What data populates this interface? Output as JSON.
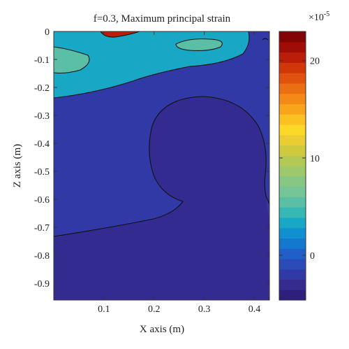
{
  "chart_data": {
    "type": "contour",
    "title": "f=0.3, Maximum principal strain",
    "xlabel": "X axis (m)",
    "ylabel": "Z axis (m)",
    "xlim": [
      0,
      0.43
    ],
    "ylim": [
      -0.96,
      0
    ],
    "x_ticks": [
      {
        "value": 0.1,
        "label": "0.1"
      },
      {
        "value": 0.2,
        "label": "0.2"
      },
      {
        "value": 0.3,
        "label": "0.3"
      },
      {
        "value": 0.4,
        "label": "0.4"
      }
    ],
    "y_ticks": [
      {
        "value": 0,
        "label": "0"
      },
      {
        "value": -0.1,
        "label": "-0.1"
      },
      {
        "value": -0.2,
        "label": "-0.2"
      },
      {
        "value": -0.3,
        "label": "-0.3"
      },
      {
        "value": -0.4,
        "label": "-0.4"
      },
      {
        "value": -0.5,
        "label": "-0.5"
      },
      {
        "value": -0.6,
        "label": "-0.6"
      },
      {
        "value": -0.7,
        "label": "-0.7"
      },
      {
        "value": -0.8,
        "label": "-0.8"
      },
      {
        "value": -0.9,
        "label": "-0.9"
      }
    ],
    "colorbar": {
      "exponent_label": "×10",
      "exponent_power": "-5",
      "range": [
        -4.6,
        23
      ],
      "ticks": [
        {
          "value": 0,
          "label": "0"
        },
        {
          "value": 10,
          "label": "10"
        },
        {
          "value": 20,
          "label": "20"
        }
      ],
      "colors": [
        "#2e1f7c",
        "#342b91",
        "#3039a6",
        "#2a4bb8",
        "#1f5fc7",
        "#1478cf",
        "#1090d0",
        "#18a8c6",
        "#37b8b4",
        "#5bbfa6",
        "#74c597",
        "#86c883",
        "#9dc96b",
        "#b4c955",
        "#cfc93e",
        "#eacd33",
        "#fcd828",
        "#fbc021",
        "#f9a51b",
        "#f48a16",
        "#ec6e12",
        "#e1520e",
        "#d1370b",
        "#bb1e08",
        "#a00c06",
        "#830404"
      ]
    },
    "regions": [
      {
        "name": "background-band",
        "value": -3.5
      },
      {
        "name": "lower-band",
        "value": -2.3
      },
      {
        "name": "upper-band",
        "value": 3.7
      },
      {
        "name": "inner-band-left",
        "value": 5.6
      },
      {
        "name": "inner-band-right",
        "value": 5.6
      },
      {
        "name": "peak",
        "value": 20
      }
    ]
  }
}
